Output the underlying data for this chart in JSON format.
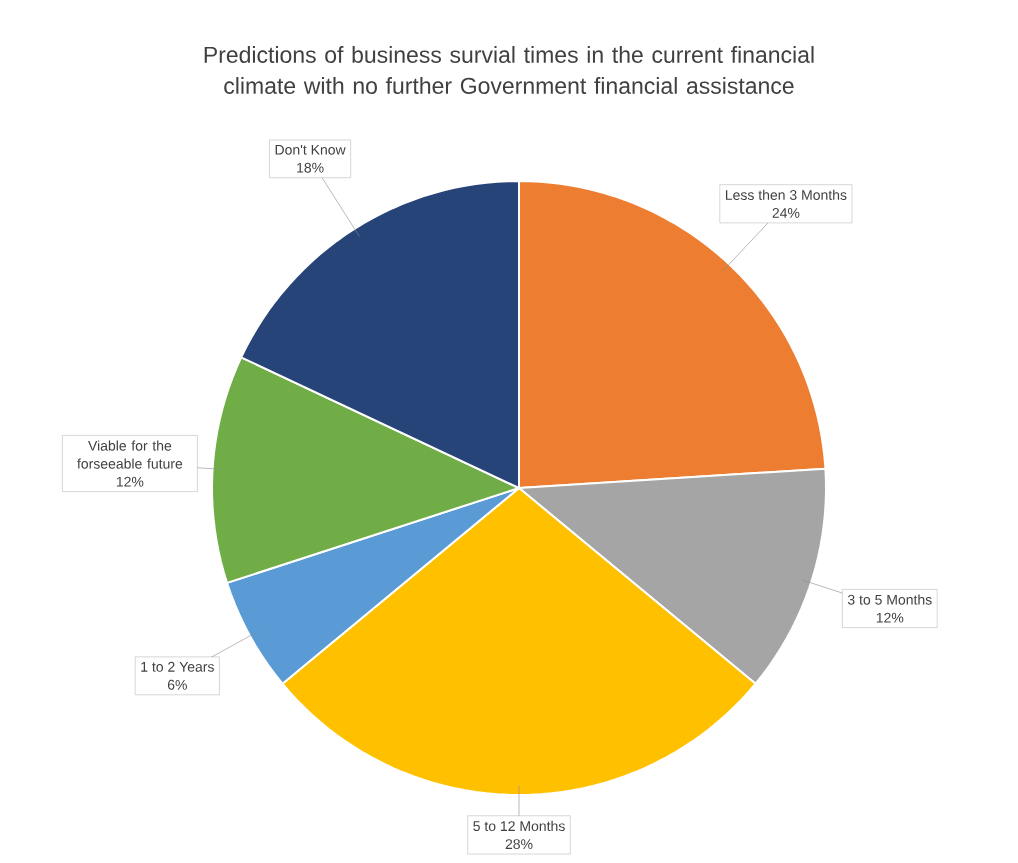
{
  "chart_data": {
    "type": "pie",
    "title": "Predictions of business survial times in the current financial climate with no further Government financial assistance",
    "categories": [
      "Less then 3 Months",
      "3 to 5 Months",
      "5 to 12 Months",
      "1 to 2 Years",
      "Viable for the forseeable future",
      "Don't Know"
    ],
    "values": [
      24,
      12,
      28,
      6,
      12,
      18
    ],
    "colors": [
      "#ed7d31",
      "#a5a5a5",
      "#ffc000",
      "#5b9bd5",
      "#70ad47",
      "#264478"
    ],
    "value_labels": [
      "24%",
      "12%",
      "28%",
      "6%",
      "12%",
      "18%"
    ]
  }
}
